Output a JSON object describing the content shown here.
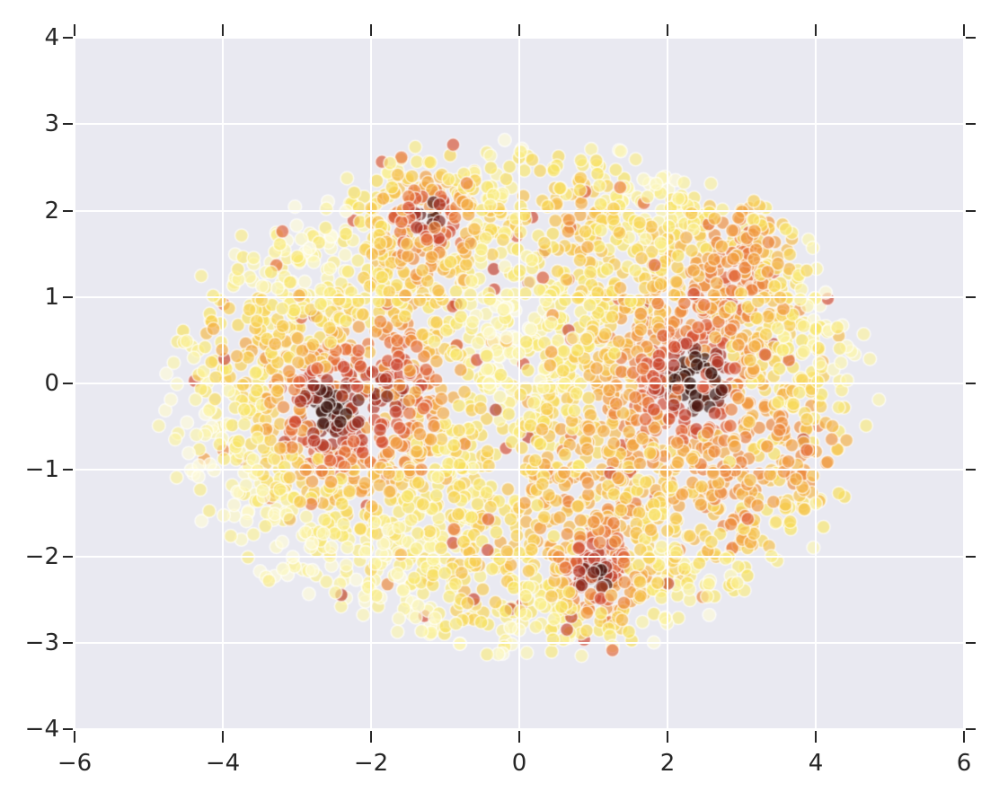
{
  "chart_data": {
    "type": "scatter",
    "title": "",
    "xlabel": "",
    "ylabel": "",
    "xlim": [
      -6,
      6
    ],
    "ylim": [
      -4,
      4
    ],
    "grid": true,
    "legend": "none",
    "x_ticks": [
      -6,
      -4,
      -2,
      0,
      2,
      4,
      6
    ],
    "x_tick_labels": [
      "−6",
      "−4",
      "−2",
      "0",
      "2",
      "4",
      "6"
    ],
    "y_ticks": [
      4,
      3,
      2,
      1,
      0,
      -1,
      -2,
      -3,
      -4
    ],
    "y_tick_labels": [
      "4",
      "3",
      "2",
      "1",
      "0",
      "−1",
      "−2",
      "−3",
      "−4"
    ],
    "colors": {
      "figure_bg": "#FFFFFF",
      "axes_bg": "#E9E9F1",
      "grid": "#FFFFFF",
      "tick": "#262626",
      "tick_label": "#262626"
    },
    "points_model": {
      "note": "dense translucent scatter, heat colormap pale-yellow to near-black dark red, clustered red blobs in a sea of yellow",
      "seed": 1337,
      "n_base": 2700,
      "ellipse": {
        "cx": 0.0,
        "cy": -0.2,
        "rx": 4.75,
        "ry": 2.95
      },
      "radius_px": 7.4,
      "fill_alpha": 0.68,
      "stroke_color": "rgba(255,255,255,0.65)",
      "stroke_width": 1.6,
      "colormap_stops": [
        [
          0.0,
          "#FDFAD8"
        ],
        [
          0.12,
          "#FAF199"
        ],
        [
          0.25,
          "#F8E35F"
        ],
        [
          0.38,
          "#F6C44E"
        ],
        [
          0.5,
          "#F0973F"
        ],
        [
          0.62,
          "#E56E3D"
        ],
        [
          0.74,
          "#D04A33"
        ],
        [
          0.85,
          "#A53326"
        ],
        [
          0.93,
          "#6E2018"
        ],
        [
          1.0,
          "#38130D"
        ]
      ],
      "heat_bumps": [
        {
          "c": [
            -2.25,
            -0.35
          ],
          "s": 0.85,
          "a": 0.62
        },
        {
          "c": [
            -2.7,
            -0.3
          ],
          "s": 0.3,
          "a": 0.5
        },
        {
          "c": [
            -1.55,
            0.05
          ],
          "s": 0.45,
          "a": 0.35
        },
        {
          "c": [
            -1.3,
            1.85
          ],
          "s": 0.55,
          "a": 0.55
        },
        {
          "c": [
            -1.15,
            1.95
          ],
          "s": 0.18,
          "a": 0.55
        },
        {
          "c": [
            2.15,
            0.05
          ],
          "s": 0.95,
          "a": 0.6
        },
        {
          "c": [
            2.4,
            0.0
          ],
          "s": 0.28,
          "a": 0.75
        },
        {
          "c": [
            1.15,
            -2.2
          ],
          "s": 0.5,
          "a": 0.55
        },
        {
          "c": [
            1.0,
            -2.3
          ],
          "s": 0.2,
          "a": 0.45
        },
        {
          "c": [
            3.05,
            1.6
          ],
          "s": 0.55,
          "a": 0.4
        },
        {
          "c": [
            4.1,
            -0.8
          ],
          "s": 0.55,
          "a": 0.42
        },
        {
          "c": [
            0.3,
            -1.2
          ],
          "s": 0.7,
          "a": 0.3
        },
        {
          "c": [
            0.6,
            2.0
          ],
          "s": 0.55,
          "a": 0.35
        },
        {
          "c": [
            -3.9,
            0.6
          ],
          "s": 0.5,
          "a": 0.28
        },
        {
          "c": [
            -0.6,
            -2.3
          ],
          "s": 0.5,
          "a": 0.25
        },
        {
          "c": [
            2.9,
            -1.6
          ],
          "s": 0.5,
          "a": 0.35
        }
      ],
      "extra_clusters": [
        {
          "c": [
            -2.3,
            -0.35
          ],
          "s": 0.8,
          "n": 260
        },
        {
          "c": [
            2.15,
            0.0
          ],
          "s": 0.9,
          "n": 300
        },
        {
          "c": [
            -1.3,
            1.85
          ],
          "s": 0.5,
          "n": 130
        },
        {
          "c": [
            1.1,
            -2.2
          ],
          "s": 0.42,
          "n": 110
        },
        {
          "c": [
            3.0,
            1.6
          ],
          "s": 0.55,
          "n": 90
        }
      ],
      "noise_amp": 0.22,
      "noise_center": 0.45,
      "sprinkle_prob": 0.07,
      "sprinkle_base": 0.35,
      "sprinkle_range": 0.45,
      "pale_prob": 0.15,
      "pale_factor": 0.55,
      "heat_gamma": 0.9
    }
  }
}
